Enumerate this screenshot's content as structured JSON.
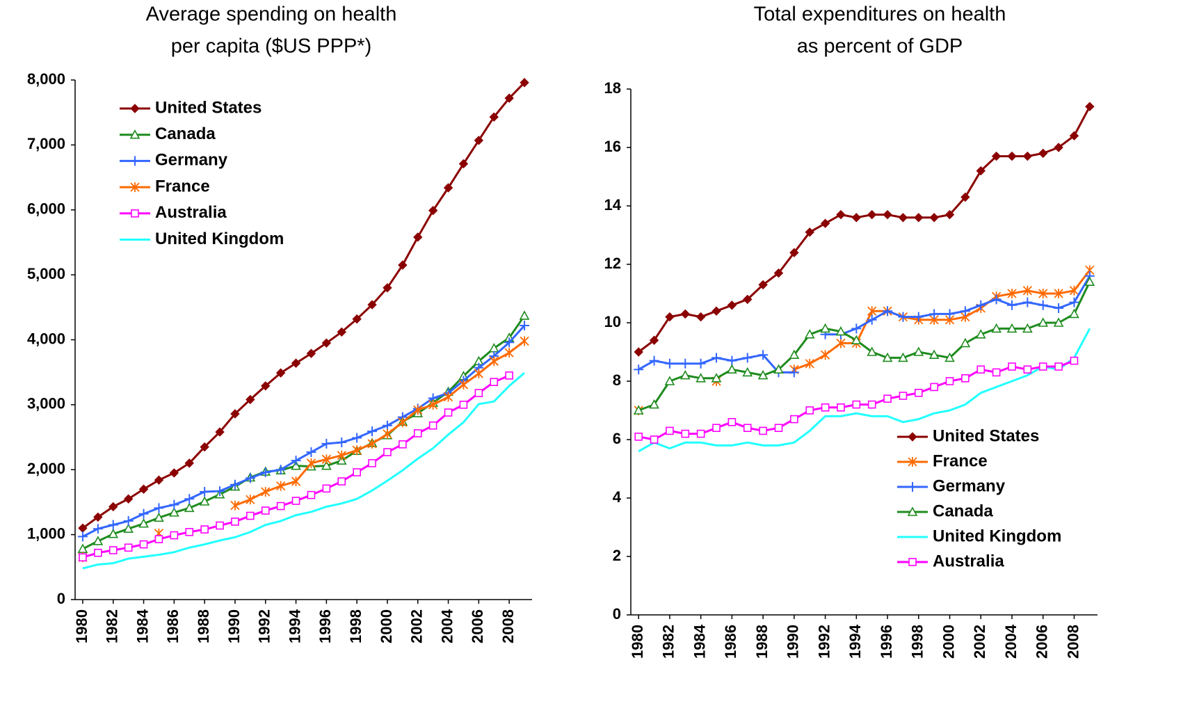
{
  "chart_data": [
    {
      "type": "line",
      "title": [
        "Average spending on health",
        "per capita ($US PPP*)"
      ],
      "x": [
        1980,
        1981,
        1982,
        1983,
        1984,
        1985,
        1986,
        1987,
        1988,
        1989,
        1990,
        1991,
        1992,
        1993,
        1994,
        1995,
        1996,
        1997,
        1998,
        1999,
        2000,
        2001,
        2002,
        2003,
        2004,
        2005,
        2006,
        2007,
        2008,
        2009
      ],
      "xlim": [
        1979.5,
        2009.5
      ],
      "xticks": [
        1980,
        1982,
        1984,
        1986,
        1988,
        1990,
        1992,
        1994,
        1996,
        1998,
        2000,
        2002,
        2004,
        2006,
        2008
      ],
      "ylim": [
        0,
        8000
      ],
      "yticks": [
        0,
        {
          "value": 1000,
          "label": "1,000"
        },
        {
          "value": 2000,
          "label": "2,000"
        },
        {
          "value": 3000,
          "label": "3,000"
        },
        {
          "value": 4000,
          "label": "4,000"
        },
        {
          "value": 5000,
          "label": "5,000"
        },
        {
          "value": 6000,
          "label": "6,000"
        },
        {
          "value": 7000,
          "label": "7,000"
        },
        {
          "value": 8000,
          "label": "8,000"
        }
      ],
      "legend": "upper left",
      "series": [
        {
          "name": "United States",
          "color": "#8b0000",
          "marker": "diamond",
          "values": [
            1100,
            1270,
            1430,
            1550,
            1700,
            1840,
            1950,
            2100,
            2350,
            2580,
            2860,
            3080,
            3290,
            3490,
            3640,
            3790,
            3950,
            4120,
            4320,
            4540,
            4800,
            5150,
            5580,
            5990,
            6340,
            6710,
            7070,
            7430,
            7720,
            7960
          ]
        },
        {
          "name": "Canada",
          "color": "#1e8b1e",
          "marker": "triangle",
          "values": [
            780,
            900,
            1010,
            1090,
            1170,
            1260,
            1340,
            1410,
            1510,
            1620,
            1740,
            1880,
            1970,
            1990,
            2060,
            2050,
            2060,
            2140,
            2290,
            2410,
            2530,
            2740,
            2870,
            3030,
            3200,
            3440,
            3670,
            3870,
            4030,
            4370
          ]
        },
        {
          "name": "Germany",
          "color": "#3366ff",
          "marker": "plus",
          "values": [
            970,
            1090,
            1150,
            1210,
            1320,
            1410,
            1460,
            1550,
            1660,
            1670,
            1770,
            1870,
            1960,
            2000,
            2140,
            2270,
            2400,
            2420,
            2490,
            2590,
            2680,
            2810,
            2940,
            3100,
            3180,
            3370,
            3570,
            3750,
            3960,
            4220
          ]
        },
        {
          "name": "France",
          "color": "#ff6a00",
          "marker": "star",
          "values": [
            650,
            null,
            null,
            null,
            null,
            1020,
            null,
            null,
            null,
            null,
            1450,
            1540,
            1660,
            1750,
            1820,
            2100,
            2160,
            2220,
            2300,
            2400,
            2550,
            2730,
            2920,
            3000,
            3120,
            3310,
            3480,
            3670,
            3800,
            3980
          ]
        },
        {
          "name": "Australia",
          "color": "#ff00ff",
          "marker": "square",
          "values": [
            650,
            720,
            760,
            800,
            850,
            930,
            990,
            1040,
            1080,
            1140,
            1200,
            1290,
            1370,
            1440,
            1520,
            1610,
            1710,
            1820,
            1960,
            2100,
            2270,
            2390,
            2560,
            2680,
            2880,
            3000,
            3180,
            3350,
            3450,
            null
          ]
        },
        {
          "name": "United Kingdom",
          "color": "#22ffff",
          "marker": "none",
          "values": [
            480,
            540,
            560,
            630,
            660,
            690,
            730,
            800,
            850,
            910,
            960,
            1040,
            1150,
            1210,
            1300,
            1350,
            1430,
            1480,
            1550,
            1680,
            1830,
            1990,
            2170,
            2330,
            2540,
            2730,
            3010,
            3050,
            3290,
            3490
          ]
        }
      ]
    },
    {
      "type": "line",
      "title": [
        "Total expenditures on health",
        "as percent of GDP"
      ],
      "x": [
        1980,
        1981,
        1982,
        1983,
        1984,
        1985,
        1986,
        1987,
        1988,
        1989,
        1990,
        1991,
        1992,
        1993,
        1994,
        1995,
        1996,
        1997,
        1998,
        1999,
        2000,
        2001,
        2002,
        2003,
        2004,
        2005,
        2006,
        2007,
        2008,
        2009
      ],
      "xlim": [
        1979.5,
        2009.5
      ],
      "xticks": [
        1980,
        1982,
        1984,
        1986,
        1988,
        1990,
        1992,
        1994,
        1996,
        1998,
        2000,
        2002,
        2004,
        2006,
        2008
      ],
      "ylim": [
        0,
        18
      ],
      "yticks": [
        0,
        2,
        4,
        6,
        8,
        10,
        12,
        14,
        16,
        18
      ],
      "legend": "lower right",
      "series": [
        {
          "name": "United States",
          "color": "#8b0000",
          "marker": "diamond",
          "values": [
            9.0,
            9.4,
            10.2,
            10.3,
            10.2,
            10.4,
            10.6,
            10.8,
            11.3,
            11.7,
            12.4,
            13.1,
            13.4,
            13.7,
            13.6,
            13.7,
            13.7,
            13.6,
            13.6,
            13.6,
            13.7,
            14.3,
            15.2,
            15.7,
            15.7,
            15.7,
            15.8,
            16.0,
            16.4,
            17.4
          ]
        },
        {
          "name": "France",
          "color": "#ff6a00",
          "marker": "star",
          "values": [
            7.0,
            null,
            null,
            null,
            null,
            8.0,
            null,
            null,
            null,
            null,
            8.4,
            8.6,
            8.9,
            9.3,
            9.3,
            10.4,
            10.4,
            10.2,
            10.1,
            10.1,
            10.1,
            10.2,
            10.5,
            10.9,
            11.0,
            11.1,
            11.0,
            11.0,
            11.1,
            11.8
          ]
        },
        {
          "name": "Germany",
          "color": "#3366ff",
          "marker": "plus",
          "values": [
            8.4,
            8.7,
            8.6,
            8.6,
            8.6,
            8.8,
            8.7,
            8.8,
            8.9,
            8.3,
            8.3,
            null,
            9.6,
            9.6,
            9.8,
            10.1,
            10.4,
            10.2,
            10.2,
            10.3,
            10.3,
            10.4,
            10.6,
            10.8,
            10.6,
            10.7,
            10.6,
            10.5,
            10.7,
            11.6
          ]
        },
        {
          "name": "Canada",
          "color": "#1e8b1e",
          "marker": "triangle",
          "values": [
            7.0,
            7.2,
            8.0,
            8.2,
            8.1,
            8.1,
            8.4,
            8.3,
            8.2,
            8.4,
            8.9,
            9.6,
            9.8,
            9.7,
            9.4,
            9.0,
            8.8,
            8.8,
            9.0,
            8.9,
            8.8,
            9.3,
            9.6,
            9.8,
            9.8,
            9.8,
            10.0,
            10.0,
            10.3,
            11.4
          ]
        },
        {
          "name": "United Kingdom",
          "color": "#22ffff",
          "marker": "none",
          "values": [
            5.6,
            5.9,
            5.7,
            5.9,
            5.9,
            5.8,
            5.8,
            5.9,
            5.8,
            5.8,
            5.9,
            6.3,
            6.8,
            6.8,
            6.9,
            6.8,
            6.8,
            6.6,
            6.7,
            6.9,
            7.0,
            7.2,
            7.6,
            7.8,
            8.0,
            8.2,
            8.5,
            8.4,
            8.8,
            9.8
          ]
        },
        {
          "name": "Australia",
          "color": "#ff00ff",
          "marker": "square",
          "values": [
            6.1,
            6.0,
            6.3,
            6.2,
            6.2,
            6.4,
            6.6,
            6.4,
            6.3,
            6.4,
            6.7,
            7.0,
            7.1,
            7.1,
            7.2,
            7.2,
            7.4,
            7.5,
            7.6,
            7.8,
            8.0,
            8.1,
            8.4,
            8.3,
            8.5,
            8.4,
            8.5,
            8.5,
            8.7,
            null
          ]
        }
      ]
    }
  ]
}
